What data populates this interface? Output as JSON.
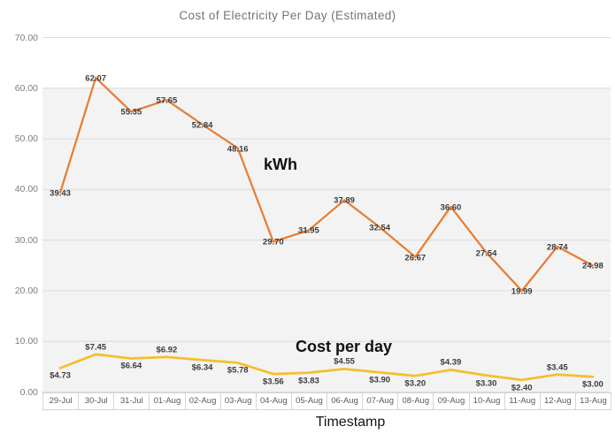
{
  "chart_data": {
    "type": "line",
    "title": "Cost of Electricity Per Day (Estimated)",
    "xlabel": "Timestamp",
    "ylabel": "",
    "ylim": [
      0,
      70
    ],
    "grid": true,
    "legend": "none (inline series annotations)",
    "y_ticks": [
      {
        "value": 70,
        "label": "70.00"
      },
      {
        "value": 60,
        "label": "60.00"
      },
      {
        "value": 50,
        "label": "50.00"
      },
      {
        "value": 40,
        "label": "40.00"
      },
      {
        "value": 30,
        "label": "30.00"
      },
      {
        "value": 20,
        "label": "20.00"
      },
      {
        "value": 10,
        "label": "10.00"
      },
      {
        "value": 0,
        "label": "0.00"
      }
    ],
    "categories": [
      "29-Jul",
      "30-Jul",
      "31-Jul",
      "01-Aug",
      "02-Aug",
      "03-Aug",
      "04-Aug",
      "05-Aug",
      "06-Aug",
      "07-Aug",
      "08-Aug",
      "09-Aug",
      "10-Aug",
      "11-Aug",
      "12-Aug",
      "13-Aug"
    ],
    "series": [
      {
        "name": "kWh",
        "color": "#E87D33",
        "stroke_width": 2.25,
        "label_position": "center",
        "values": [
          39.43,
          62.07,
          55.35,
          57.65,
          52.84,
          48.16,
          29.7,
          31.95,
          37.89,
          32.54,
          26.67,
          36.6,
          27.54,
          19.99,
          28.74,
          24.98
        ],
        "labels": [
          "39.43",
          "62.07",
          "55.35",
          "57.65",
          "52.84",
          "48.16",
          "29.70",
          "31.95",
          "37.89",
          "32.54",
          "26.67",
          "36.60",
          "27.54",
          "19.99",
          "28.74",
          "24.98"
        ]
      },
      {
        "name": "Cost per day",
        "color": "#F5BE2E",
        "stroke_width": 2.75,
        "label_position": "auto",
        "values": [
          4.73,
          7.45,
          6.64,
          6.92,
          6.34,
          5.78,
          3.56,
          3.83,
          4.55,
          3.9,
          3.2,
          4.39,
          3.3,
          2.4,
          3.45,
          3.0
        ],
        "labels": [
          "$4.73",
          "$7.45",
          "$6.64",
          "$6.92",
          "$6.34",
          "$5.78",
          "$3.56",
          "$3.83",
          "$4.55",
          "$3.90",
          "$3.20",
          "$4.39",
          "$3.30",
          "$2.40",
          "$3.45",
          "$3.00"
        ]
      }
    ],
    "annotations": [
      {
        "text": "kWh",
        "x": 298,
        "y": 176
      },
      {
        "text": "Cost per day",
        "x": 334,
        "y": 382
      }
    ]
  }
}
